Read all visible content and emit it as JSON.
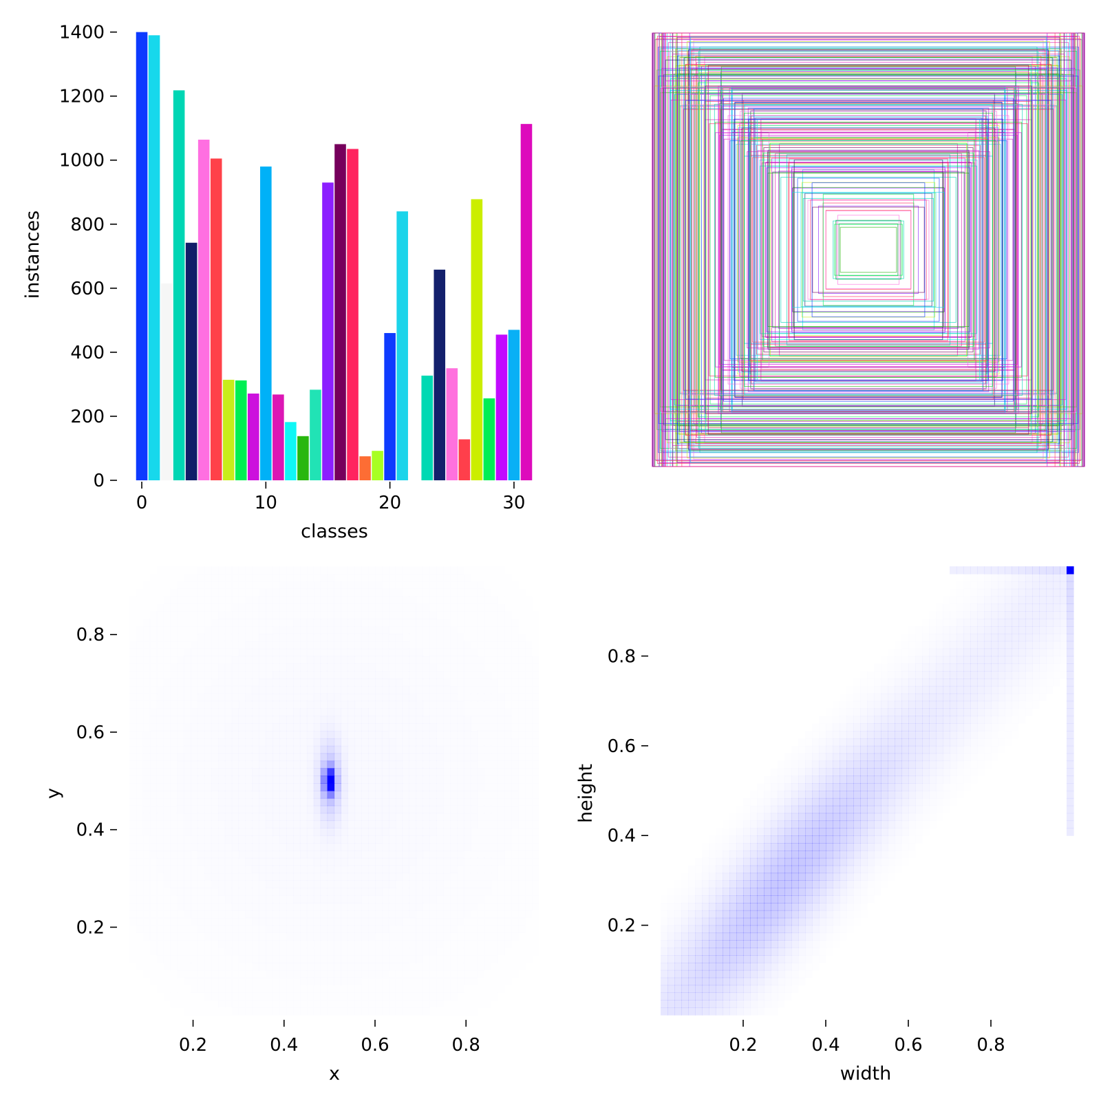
{
  "chart_data": [
    {
      "id": "class_hist",
      "type": "bar",
      "xlabel": "classes",
      "ylabel": "instances",
      "xlim": [
        -1,
        32
      ],
      "ylim": [
        0,
        1440
      ],
      "xticks": [
        0,
        10,
        20,
        30
      ],
      "yticks": [
        0,
        200,
        400,
        600,
        800,
        1000,
        1200,
        1400
      ],
      "categories": [
        0,
        1,
        2,
        3,
        4,
        5,
        6,
        7,
        8,
        9,
        10,
        11,
        12,
        13,
        14,
        15,
        16,
        17,
        18,
        19,
        20,
        21,
        22,
        23,
        24,
        25,
        26,
        27,
        28,
        29,
        30,
        31
      ],
      "values": [
        1400,
        1390,
        615,
        1218,
        742,
        1064,
        1005,
        314,
        312,
        271,
        980,
        268,
        182,
        138,
        283,
        930,
        1050,
        1035,
        75,
        92,
        460,
        840,
        0,
        327,
        658,
        350,
        128,
        878,
        256,
        455,
        470,
        1113
      ],
      "colors": [
        "#0d3aff",
        "#17d8ec",
        "#f6f6f6",
        "#00d6b4",
        "#111d69",
        "#ff6fe1",
        "#ff4149",
        "#c8ec1b",
        "#00ef53",
        "#cc11dd",
        "#00b1f7",
        "#dc16b4",
        "#0ff7f5",
        "#28b70f",
        "#21e3b5",
        "#8c1fff",
        "#76005c",
        "#ff245f",
        "#fd6d34",
        "#a8ff22",
        "#0e3bff",
        "#1bd4ea",
        "#ffffff",
        "#00d9b3",
        "#13206c",
        "#ff71de",
        "#ff3f4b",
        "#cbee00",
        "#00ee55",
        "#c20aff",
        "#09b0f5",
        "#dd0bbc"
      ]
    },
    {
      "id": "box_overlay",
      "type": "boxes",
      "colors": [
        "#0d3aff",
        "#17d8ec",
        "#00d6b4",
        "#111d69",
        "#ff6fe1",
        "#ff4149",
        "#c8ec1b",
        "#00ef53",
        "#cc11dd",
        "#00b1f7",
        "#dc16b4",
        "#8c1fff",
        "#76005c",
        "#ff245f",
        "#28b70f"
      ]
    },
    {
      "id": "xy_hist",
      "type": "heatmap",
      "xlabel": "x",
      "ylabel": "y",
      "xlim": [
        0.06,
        0.96
      ],
      "ylim": [
        0.02,
        0.94
      ],
      "xticks": [
        0.2,
        0.4,
        0.6,
        0.8
      ],
      "yticks": [
        0.2,
        0.4,
        0.6,
        0.8
      ],
      "xtick_labels": [
        "0.2",
        "0.4",
        "0.6",
        "0.8"
      ],
      "ytick_labels": [
        "0.2",
        "0.4",
        "0.6",
        "0.8"
      ],
      "peak": [
        0.5,
        0.5
      ],
      "color": "#0000ff"
    },
    {
      "id": "wh_hist",
      "type": "heatmap",
      "xlabel": "width",
      "ylabel": "height",
      "xlim": [
        0.0,
        1.0
      ],
      "ylim": [
        0.0,
        1.0
      ],
      "xticks": [
        0.2,
        0.4,
        0.6,
        0.8
      ],
      "yticks": [
        0.2,
        0.4,
        0.6,
        0.8
      ],
      "xtick_labels": [
        "0.2",
        "0.4",
        "0.6",
        "0.8"
      ],
      "ytick_labels": [
        "0.2",
        "0.4",
        "0.6",
        "0.8"
      ],
      "peak": [
        1.0,
        1.0
      ],
      "color": "#0000ff"
    }
  ]
}
